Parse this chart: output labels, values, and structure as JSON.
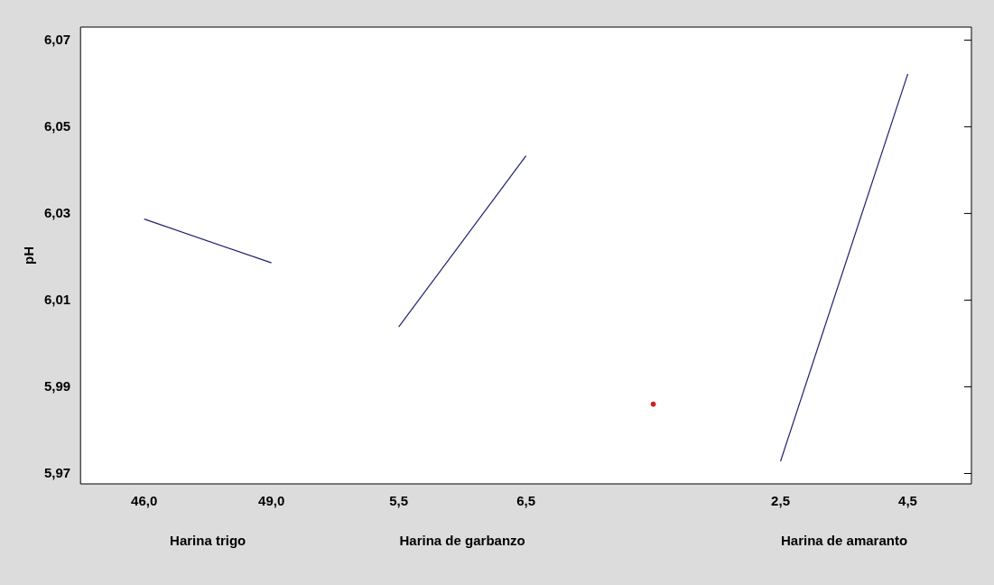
{
  "chart_data": {
    "type": "line",
    "ylabel": "pH",
    "categories": [
      "46,0",
      "49,0",
      "5,5",
      "6,5",
      null,
      "2,5",
      "4,5"
    ],
    "ylim": [
      5.9676,
      6.073
    ],
    "yticks": [
      {
        "value": 5.97,
        "label": "5,97"
      },
      {
        "value": 5.99,
        "label": "5,99"
      },
      {
        "value": 6.01,
        "label": "6,01"
      },
      {
        "value": 6.03,
        "label": "6,03"
      },
      {
        "value": 6.05,
        "label": "6,05"
      },
      {
        "value": 6.07,
        "label": "6,07"
      }
    ],
    "series": [
      {
        "color": "#1f1f70",
        "values": [
          6.0287,
          6.0186,
          null,
          null,
          null,
          null,
          null
        ]
      },
      {
        "color": "#1f1f70",
        "values": [
          null,
          null,
          6.0038,
          6.0433,
          null,
          null,
          null
        ]
      },
      {
        "color": "#1f1f70",
        "values": [
          null,
          null,
          null,
          null,
          null,
          5.9728,
          6.0622
        ]
      },
      {
        "type": "scatter",
        "marker": "circle",
        "color": "#cc2222",
        "values": [
          null,
          null,
          null,
          null,
          5.986,
          null,
          null
        ]
      }
    ],
    "annotations": [
      "Harina trigo",
      "Harina de garbanzo",
      "Harina de amaranto"
    ],
    "grid": false,
    "legend": false,
    "line_style": "solid"
  }
}
